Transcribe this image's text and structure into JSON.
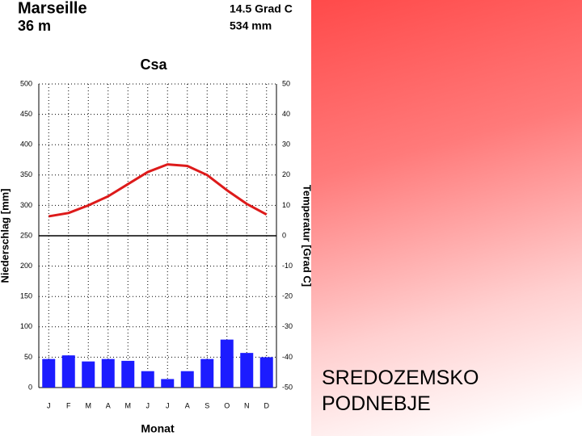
{
  "slide_title": "SREDOZEMSKO PODNEBJE",
  "chart_data": {
    "type": "bar",
    "title": "Marseille",
    "subtitle": "36 m",
    "annotations": [
      "14.5 Grad C",
      "534 mm"
    ],
    "climate_class": "Csa",
    "x_label": "Monat",
    "y_label": "Niederschlag [mm]",
    "y2_label": "Temperatur [Grad C]",
    "categories": [
      "J",
      "F",
      "M",
      "A",
      "M",
      "J",
      "J",
      "A",
      "S",
      "O",
      "N",
      "D"
    ],
    "series": [
      {
        "type": "bar",
        "color": "#1c1cff",
        "values": [
          47,
          53,
          43,
          47,
          44,
          27,
          14,
          27,
          47,
          79,
          57,
          50
        ]
      },
      {
        "type": "line",
        "axis": "y2",
        "color": "#dd1a1a",
        "values": [
          6.4,
          7.5,
          10,
          13,
          17,
          21,
          23.5,
          23,
          20,
          15,
          10.5,
          7
        ]
      }
    ],
    "ylim": [
      0,
      500
    ],
    "yticks": [
      0,
      50,
      100,
      150,
      200,
      250,
      300,
      350,
      400,
      450,
      500
    ],
    "y2lim": [
      -50,
      50
    ],
    "y2ticks": [
      -50,
      -40,
      -30,
      -20,
      -10,
      0,
      10,
      20,
      30,
      40,
      50
    ],
    "grid": true
  }
}
